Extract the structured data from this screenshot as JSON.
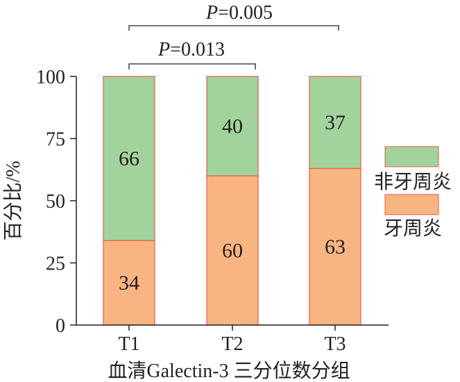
{
  "chart_data": {
    "type": "bar",
    "stacked": true,
    "percent": true,
    "categories": [
      "T1",
      "T2",
      "T3"
    ],
    "series": [
      {
        "name": "牙周炎",
        "values": [
          34,
          60,
          63
        ],
        "color": "#f9b581"
      },
      {
        "name": "非牙周炎",
        "values": [
          66,
          40,
          37
        ],
        "color": "#a3d39c"
      }
    ],
    "xlabel": "血清Galectin-3 三分位数分组",
    "ylabel": "百分比/%",
    "ylim": [
      0,
      100
    ],
    "yticks": [
      "0",
      "25",
      "50",
      "75",
      "100"
    ],
    "bar_edge_color": "#e8574f",
    "legend": {
      "position": "right",
      "entries": [
        "非牙周炎",
        "牙周炎"
      ]
    },
    "annotations": [
      {
        "from": "T1",
        "to": "T3",
        "p_label": "P",
        "p_value": "=0.005"
      },
      {
        "from": "T1",
        "to": "T2",
        "p_label": "P",
        "p_value": "=0.013"
      }
    ],
    "grid": false
  }
}
